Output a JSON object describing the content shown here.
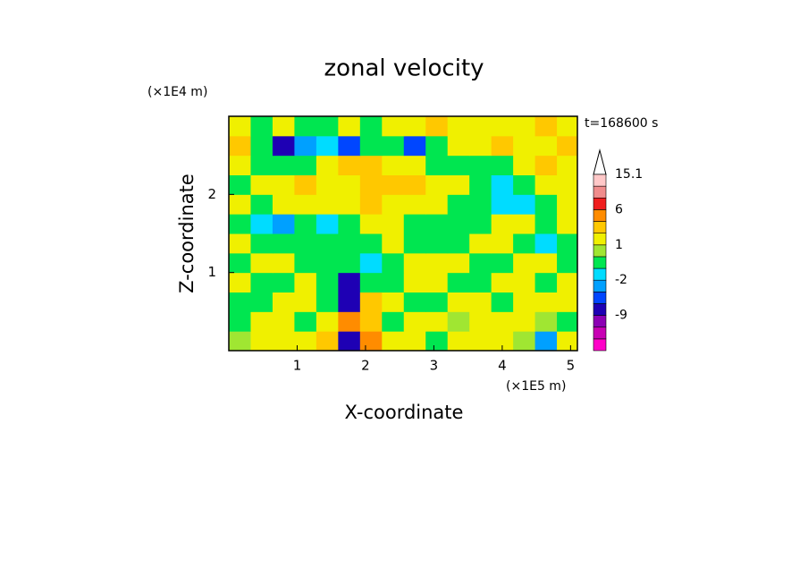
{
  "chart_data": {
    "type": "contour",
    "title": "zonal velocity",
    "xlabel": "X-coordinate",
    "ylabel": "Z-coordinate",
    "x_unit": "(×1E5 m)",
    "y_unit": "(×1E4 m)",
    "time_label": "t=168600 s",
    "xlim": [
      0,
      5.1
    ],
    "ylim": [
      0,
      3
    ],
    "xticks": [
      1,
      2,
      3,
      4,
      5
    ],
    "yticks": [
      1,
      2
    ],
    "x": [
      0.16,
      0.48,
      0.8,
      1.12,
      1.44,
      1.76,
      2.08,
      2.4,
      2.72,
      3.04,
      3.36,
      3.68,
      4.0,
      4.32,
      4.64,
      4.96
    ],
    "y": [
      0.125,
      0.375,
      0.625,
      0.875,
      1.125,
      1.375,
      1.625,
      1.875,
      2.125,
      2.375,
      2.625,
      2.875
    ],
    "z": [
      [
        0.5,
        1.5,
        1.5,
        1.5,
        2.5,
        -7,
        4,
        1.5,
        1.5,
        -0.5,
        1.5,
        1.5,
        1.5,
        0.5,
        -3,
        1.5
      ],
      [
        -0.5,
        1.5,
        1.5,
        -0.5,
        1.5,
        4,
        2.5,
        -0.5,
        1.5,
        1.5,
        0.5,
        1.5,
        1.5,
        1.5,
        0.5,
        -0.5
      ],
      [
        -0.5,
        -0.5,
        1.5,
        1.5,
        -0.5,
        -7,
        2.5,
        1.5,
        -0.5,
        -0.5,
        1.5,
        1.5,
        -0.5,
        1.5,
        1.5,
        1.5
      ],
      [
        1.5,
        -0.5,
        -0.5,
        1.5,
        -0.5,
        -7,
        -0.5,
        -0.5,
        1.5,
        1.5,
        -0.5,
        -0.5,
        1.5,
        1.5,
        -0.5,
        1.5
      ],
      [
        -0.5,
        1.5,
        1.5,
        -0.5,
        -0.5,
        -0.5,
        -1.5,
        -0.5,
        1.5,
        1.5,
        1.5,
        -0.5,
        -0.5,
        1.5,
        1.5,
        -0.5
      ],
      [
        1.5,
        -0.5,
        -0.5,
        -0.5,
        -0.5,
        -0.5,
        -0.5,
        1.5,
        -0.5,
        -0.5,
        -0.5,
        1.5,
        1.5,
        -0.5,
        -1.5,
        -0.5
      ],
      [
        -0.5,
        -1.5,
        -3,
        -0.5,
        -1.5,
        -0.5,
        1.5,
        1.5,
        -0.5,
        -0.5,
        -0.5,
        -0.5,
        1.5,
        1.5,
        -0.5,
        1.5
      ],
      [
        1.5,
        -0.5,
        1.5,
        1.5,
        1.5,
        1.5,
        2.5,
        1.5,
        1.5,
        1.5,
        -0.5,
        -0.5,
        -1.5,
        -1.5,
        -0.5,
        1.5
      ],
      [
        -0.5,
        1.5,
        1.5,
        2.5,
        1.5,
        1.5,
        2.5,
        2.5,
        2.5,
        1.5,
        1.5,
        -0.5,
        -1.5,
        -0.5,
        1.5,
        1.5
      ],
      [
        1.5,
        -0.5,
        -0.5,
        -0.5,
        1.5,
        2.5,
        2.5,
        1.5,
        1.5,
        -0.5,
        -0.5,
        -0.5,
        -0.5,
        1.5,
        2.5,
        1.5
      ],
      [
        2.5,
        -0.5,
        -7,
        -3,
        -1.5,
        -5,
        -0.5,
        -0.5,
        -5,
        -0.5,
        1.5,
        1.5,
        2.5,
        1.5,
        1.5,
        2.5
      ],
      [
        1.5,
        -0.5,
        1.5,
        -0.5,
        -0.5,
        1.5,
        -0.5,
        1.5,
        1.5,
        2.5,
        1.5,
        1.5,
        1.5,
        1.5,
        2.5,
        1.5
      ]
    ],
    "levels": [
      -18,
      -15,
      -12,
      -9,
      -6,
      -4,
      -2,
      -1,
      0,
      1,
      2,
      3,
      6,
      9,
      12,
      15.1
    ],
    "colors": [
      "#ff00c8",
      "#c800b4",
      "#8c00b4",
      "#1e00b4",
      "#0046ff",
      "#00a0ff",
      "#00dcff",
      "#00e650",
      "#a0e632",
      "#f0f000",
      "#ffc800",
      "#ff8c00",
      "#f01e1e",
      "#f08c8c",
      "#ffc8c8"
    ],
    "colorbar_ticks": [
      -9,
      -2,
      1,
      6,
      15.1
    ]
  }
}
